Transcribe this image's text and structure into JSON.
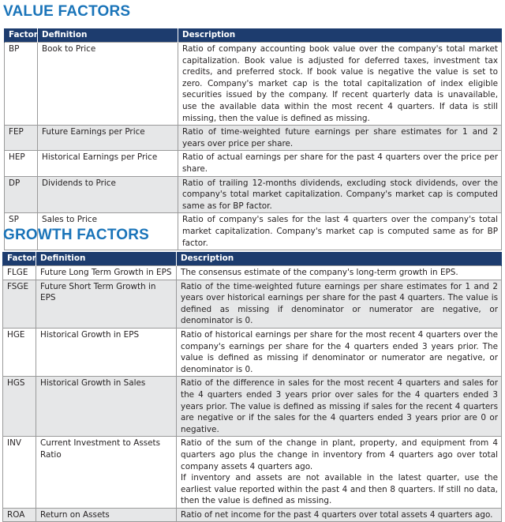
{
  "value_section": {
    "title": "VALUE FACTORS",
    "headers": {
      "factor": "Factor",
      "definition": "Definition",
      "description": "Description"
    },
    "rows": [
      {
        "factor": "BP",
        "definition": "Book to Price",
        "description": "Ratio of company accounting book value over the company's total market capitalization. Book value is adjusted for deferred taxes, investment tax credits, and preferred stock. If book value is negative the value is set to zero. Company's market cap is the total capitalization of index eligible securities issued by the company. If recent quarterly data is unavailable, use the available data within the most recent 4 quarters. If data is still missing, then the value is defined as missing."
      },
      {
        "factor": "FEP",
        "definition": "Future Earnings per Price",
        "description": "Ratio of time-weighted future earnings per share estimates for 1 and 2 years over price per share."
      },
      {
        "factor": "HEP",
        "definition": "Historical Earnings per  Price",
        "description": "Ratio of actual earnings per share for the past 4 quarters over the price per share."
      },
      {
        "factor": "DP",
        "definition": "Dividends to Price",
        "description": "Ratio of trailing 12-months dividends, excluding stock dividends, over the company's total market capitalization.  Company's market cap is computed same as for BP factor."
      },
      {
        "factor": "SP",
        "definition": "Sales to Price",
        "description": "Ratio of company's sales for the last 4 quarters over the company's total market capitalization. Company's market cap is computed same as for BP factor."
      }
    ]
  },
  "growth_section": {
    "title": "GROWTH FACTORS",
    "headers": {
      "factor": "Factor",
      "definition": "Definition",
      "description": "Description"
    },
    "rows": [
      {
        "factor": "FLGE",
        "definition": "Future Long Term Growth in EPS",
        "description": "The consensus estimate of the company's long-term growth in EPS."
      },
      {
        "factor": "FSGE",
        "definition": "Future Short Term Growth in EPS",
        "description": "Ratio of the time-weighted future earnings per share estimates for 1 and 2 years over historical earnings per share for the past 4 quarters. The value is defined as missing if denominator or numerator are negative, or denominator is 0."
      },
      {
        "factor": "HGE",
        "definition": "Historical Growth in EPS",
        "description": "Ratio of historical earnings per share for the most recent 4 quarters over the company's earnings per share for the 4 quarters ended 3 years prior. The value is defined as missing if denominator or numerator are negative, or denominator is 0."
      },
      {
        "factor": "HGS",
        "definition": "Historical Growth in Sales",
        "description": "Ratio of the difference in sales for the most recent 4 quarters and sales for the 4 quarters ended 3 years prior over sales for the 4 quarters ended 3 years prior. The value is defined as missing if sales for the recent 4 quarters are negative or if the sales for the 4 quarters ended 3 years prior are 0 or negative."
      },
      {
        "factor": "INV",
        "definition": "Current Investment to Assets Ratio",
        "description": "Ratio of the sum of the change in plant, property, and equipment from 4 quarters ago plus the change in inventory from 4 quarters ago over total company assets 4 quarters ago.",
        "description_2": "If inventory and assets are not available in the latest quarter, use the earliest value reported within the past 4 and then 8 quarters. If still no data, then the value is defined as missing."
      },
      {
        "factor": "ROA",
        "definition": "Return on Assets",
        "description": "Ratio of net income for the past 4 quarters over total assets 4 quarters ago."
      }
    ]
  }
}
